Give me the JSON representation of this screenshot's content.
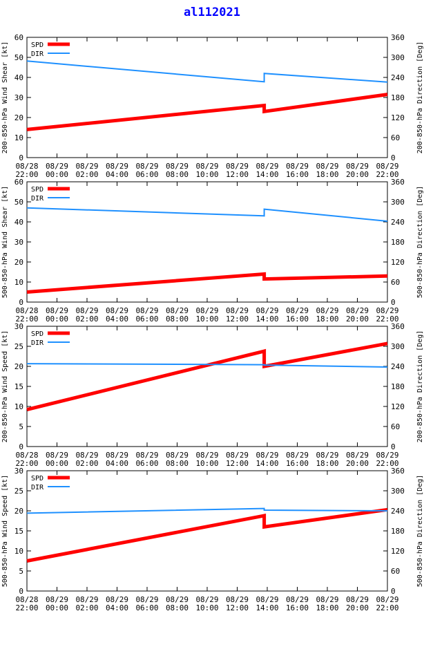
{
  "title": "al112021",
  "colors": {
    "spd": "#ff0000",
    "dir": "#1e90ff",
    "axis": "#000000"
  },
  "legend": {
    "spd": "SPD",
    "dir": "DIR"
  },
  "x_ticks": [
    [
      "08/28",
      "22:00"
    ],
    [
      "08/29",
      "00:00"
    ],
    [
      "08/29",
      "02:00"
    ],
    [
      "08/29",
      "04:00"
    ],
    [
      "08/29",
      "06:00"
    ],
    [
      "08/29",
      "08:00"
    ],
    [
      "08/29",
      "10:00"
    ],
    [
      "08/29",
      "12:00"
    ],
    [
      "08/29",
      "14:00"
    ],
    [
      "08/29",
      "16:00"
    ],
    [
      "08/29",
      "18:00"
    ],
    [
      "08/29",
      "20:00"
    ],
    [
      "08/29",
      "22:00"
    ]
  ],
  "chart_data": [
    {
      "type": "line",
      "ylabel": "200-850-hPa Wind Shear [kt]",
      "y2label": "200-850-hPa Direction [Deg]",
      "ylim": [
        0,
        60
      ],
      "yticks": [
        0,
        10,
        20,
        30,
        40,
        50,
        60
      ],
      "y2lim": [
        0,
        360
      ],
      "y2ticks": [
        0,
        60,
        120,
        180,
        240,
        300,
        360
      ],
      "x_hours": [
        0,
        24
      ],
      "step_hour": 15.8,
      "series": [
        {
          "name": "SPD",
          "axis": "left",
          "segments": [
            [
              [
                0,
                14
              ],
              [
                15.8,
                26
              ]
            ],
            [
              [
                15.8,
                23
              ],
              [
                24,
                31.5
              ]
            ]
          ]
        },
        {
          "name": "DIR",
          "axis": "right",
          "segments": [
            [
              [
                0,
                289
              ],
              [
                15.8,
                227
              ]
            ],
            [
              [
                15.8,
                252
              ],
              [
                24,
                226
              ]
            ]
          ]
        }
      ]
    },
    {
      "type": "line",
      "ylabel": "500-850-hPa Wind Shear [kt]",
      "y2label": "500-850-hPa Direction [Deg]",
      "ylim": [
        0,
        60
      ],
      "yticks": [
        0,
        10,
        20,
        30,
        40,
        50,
        60
      ],
      "y2lim": [
        0,
        360
      ],
      "y2ticks": [
        0,
        60,
        120,
        180,
        240,
        300,
        360
      ],
      "x_hours": [
        0,
        24
      ],
      "step_hour": 15.8,
      "series": [
        {
          "name": "SPD",
          "axis": "left",
          "segments": [
            [
              [
                0,
                5
              ],
              [
                15.8,
                14
              ]
            ],
            [
              [
                15.8,
                11.5
              ],
              [
                24,
                13
              ]
            ]
          ]
        },
        {
          "name": "DIR",
          "axis": "right",
          "segments": [
            [
              [
                0,
                282
              ],
              [
                15.8,
                258
              ]
            ],
            [
              [
                15.8,
                278
              ],
              [
                24,
                242
              ]
            ]
          ]
        }
      ]
    },
    {
      "type": "line",
      "ylabel": "200-850-hPa Wind Speed [kt]",
      "y2label": "200-850-hPa Direction [Deg]",
      "ylim": [
        0,
        30
      ],
      "yticks": [
        0,
        5,
        10,
        15,
        20,
        25,
        30
      ],
      "y2lim": [
        0,
        360
      ],
      "y2ticks": [
        0,
        60,
        120,
        180,
        240,
        300,
        360
      ],
      "x_hours": [
        0,
        24
      ],
      "step_hour": 15.8,
      "series": [
        {
          "name": "SPD",
          "axis": "left",
          "segments": [
            [
              [
                0,
                9.2
              ],
              [
                15.8,
                23.8
              ]
            ],
            [
              [
                15.8,
                20
              ],
              [
                24,
                25.7
              ]
            ]
          ]
        },
        {
          "name": "DIR",
          "axis": "right",
          "segments": [
            [
              [
                0,
                248
              ],
              [
                15.8,
                245
              ]
            ],
            [
              [
                15.8,
                244
              ],
              [
                24,
                238
              ]
            ]
          ]
        }
      ]
    },
    {
      "type": "line",
      "ylabel": "500-850-hPa Wind Speed [kt]",
      "y2label": "500-850-hPa Direction [Deg]",
      "ylim": [
        0,
        30
      ],
      "yticks": [
        0,
        5,
        10,
        15,
        20,
        25,
        30
      ],
      "y2lim": [
        0,
        360
      ],
      "y2ticks": [
        0,
        60,
        120,
        180,
        240,
        300,
        360
      ],
      "x_hours": [
        0,
        24
      ],
      "step_hour": 15.8,
      "series": [
        {
          "name": "SPD",
          "axis": "left",
          "segments": [
            [
              [
                0,
                7.5
              ],
              [
                15.8,
                18.8
              ]
            ],
            [
              [
                15.8,
                16
              ],
              [
                24,
                20.3
              ]
            ]
          ]
        },
        {
          "name": "DIR",
          "axis": "right",
          "segments": [
            [
              [
                0,
                233
              ],
              [
                15.8,
                247
              ]
            ],
            [
              [
                15.8,
                242
              ],
              [
                24,
                240
              ]
            ]
          ]
        }
      ]
    }
  ]
}
